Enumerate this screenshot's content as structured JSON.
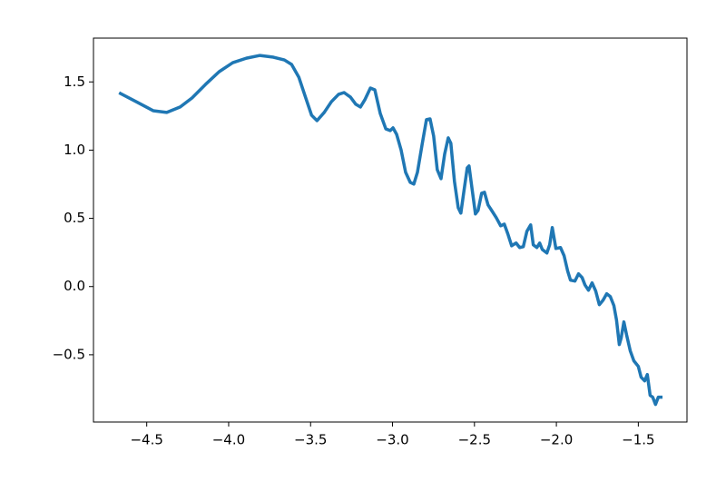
{
  "chart_data": {
    "type": "line",
    "x": [
      -4.66,
      -4.555,
      -4.461,
      -4.378,
      -4.296,
      -4.224,
      -4.141,
      -4.058,
      -3.975,
      -3.892,
      -3.809,
      -3.727,
      -3.66,
      -3.616,
      -3.572,
      -3.533,
      -3.494,
      -3.461,
      -3.417,
      -3.373,
      -3.329,
      -3.296,
      -3.257,
      -3.224,
      -3.196,
      -3.169,
      -3.135,
      -3.108,
      -3.075,
      -3.041,
      -3.014,
      -2.997,
      -2.975,
      -2.948,
      -2.92,
      -2.892,
      -2.87,
      -2.848,
      -2.82,
      -2.793,
      -2.771,
      -2.749,
      -2.727,
      -2.704,
      -2.682,
      -2.66,
      -2.644,
      -2.622,
      -2.599,
      -2.583,
      -2.566,
      -2.544,
      -2.533,
      -2.517,
      -2.494,
      -2.478,
      -2.456,
      -2.439,
      -2.417,
      -2.395,
      -2.367,
      -2.34,
      -2.318,
      -2.296,
      -2.273,
      -2.246,
      -2.224,
      -2.202,
      -2.18,
      -2.157,
      -2.141,
      -2.119,
      -2.102,
      -2.086,
      -2.058,
      -2.041,
      -2.025,
      -2.003,
      -1.975,
      -1.953,
      -1.931,
      -1.914,
      -1.887,
      -1.865,
      -1.843,
      -1.826,
      -1.804,
      -1.782,
      -1.76,
      -1.738,
      -1.715,
      -1.693,
      -1.671,
      -1.649,
      -1.633,
      -1.616,
      -1.605,
      -1.588,
      -1.572,
      -1.549,
      -1.527,
      -1.5,
      -1.483,
      -1.461,
      -1.445,
      -1.428,
      -1.412,
      -1.395,
      -1.378,
      -1.362
    ],
    "series": [
      {
        "color": "#1f77b4",
        "values": [
          1.415,
          1.349,
          1.289,
          1.276,
          1.316,
          1.382,
          1.482,
          1.575,
          1.641,
          1.674,
          1.694,
          1.681,
          1.661,
          1.628,
          1.535,
          1.395,
          1.256,
          1.216,
          1.276,
          1.355,
          1.409,
          1.422,
          1.389,
          1.336,
          1.316,
          1.369,
          1.455,
          1.442,
          1.269,
          1.156,
          1.143,
          1.163,
          1.116,
          1.003,
          0.837,
          0.764,
          0.751,
          0.837,
          1.037,
          1.223,
          1.229,
          1.103,
          0.857,
          0.791,
          0.97,
          1.09,
          1.05,
          0.771,
          0.578,
          0.538,
          0.684,
          0.87,
          0.884,
          0.738,
          0.532,
          0.558,
          0.684,
          0.691,
          0.598,
          0.558,
          0.505,
          0.445,
          0.458,
          0.385,
          0.299,
          0.319,
          0.286,
          0.292,
          0.405,
          0.452,
          0.306,
          0.286,
          0.319,
          0.272,
          0.246,
          0.306,
          0.432,
          0.279,
          0.286,
          0.226,
          0.113,
          0.047,
          0.04,
          0.093,
          0.066,
          0.013,
          -0.027,
          0.027,
          -0.033,
          -0.133,
          -0.1,
          -0.053,
          -0.073,
          -0.14,
          -0.246,
          -0.425,
          -0.379,
          -0.259,
          -0.352,
          -0.472,
          -0.545,
          -0.585,
          -0.664,
          -0.691,
          -0.645,
          -0.797,
          -0.811,
          -0.864,
          -0.811,
          -0.811
        ]
      }
    ],
    "xlim": [
      -4.825,
      -1.203
    ],
    "ylim": [
      -0.993,
      1.821
    ],
    "xticks": [
      {
        "value": -4.5,
        "label": "−4.5"
      },
      {
        "value": -4.0,
        "label": "−4.0"
      },
      {
        "value": -3.5,
        "label": "−3.5"
      },
      {
        "value": -3.0,
        "label": "−3.0"
      },
      {
        "value": -2.5,
        "label": "−2.5"
      },
      {
        "value": -2.0,
        "label": "−2.0"
      },
      {
        "value": -1.5,
        "label": "−1.5"
      }
    ],
    "yticks": [
      {
        "value": -0.5,
        "label": "−0.5"
      },
      {
        "value": 0.0,
        "label": "0.0"
      },
      0.5,
      {
        "value": 1.0,
        "label": "1.0"
      },
      1.5
    ]
  }
}
